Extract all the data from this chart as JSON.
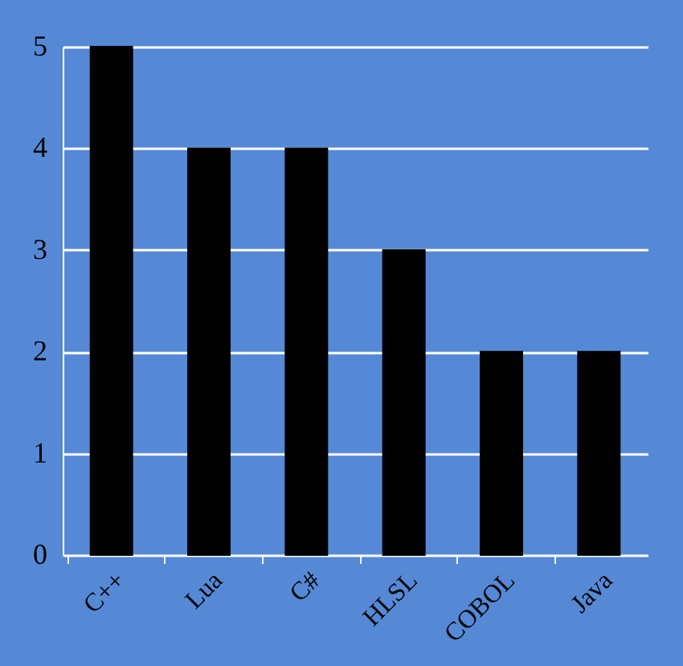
{
  "chart_data": {
    "type": "bar",
    "categories": [
      "C++",
      "Lua",
      "C#",
      "HLSL",
      "COBOL",
      "Java"
    ],
    "values": [
      5,
      4,
      4,
      3,
      2,
      2
    ],
    "color": "#000000",
    "ylim": [
      0,
      5
    ],
    "yticks": [
      0,
      1,
      2,
      3,
      4,
      5
    ],
    "grid": "y"
  }
}
